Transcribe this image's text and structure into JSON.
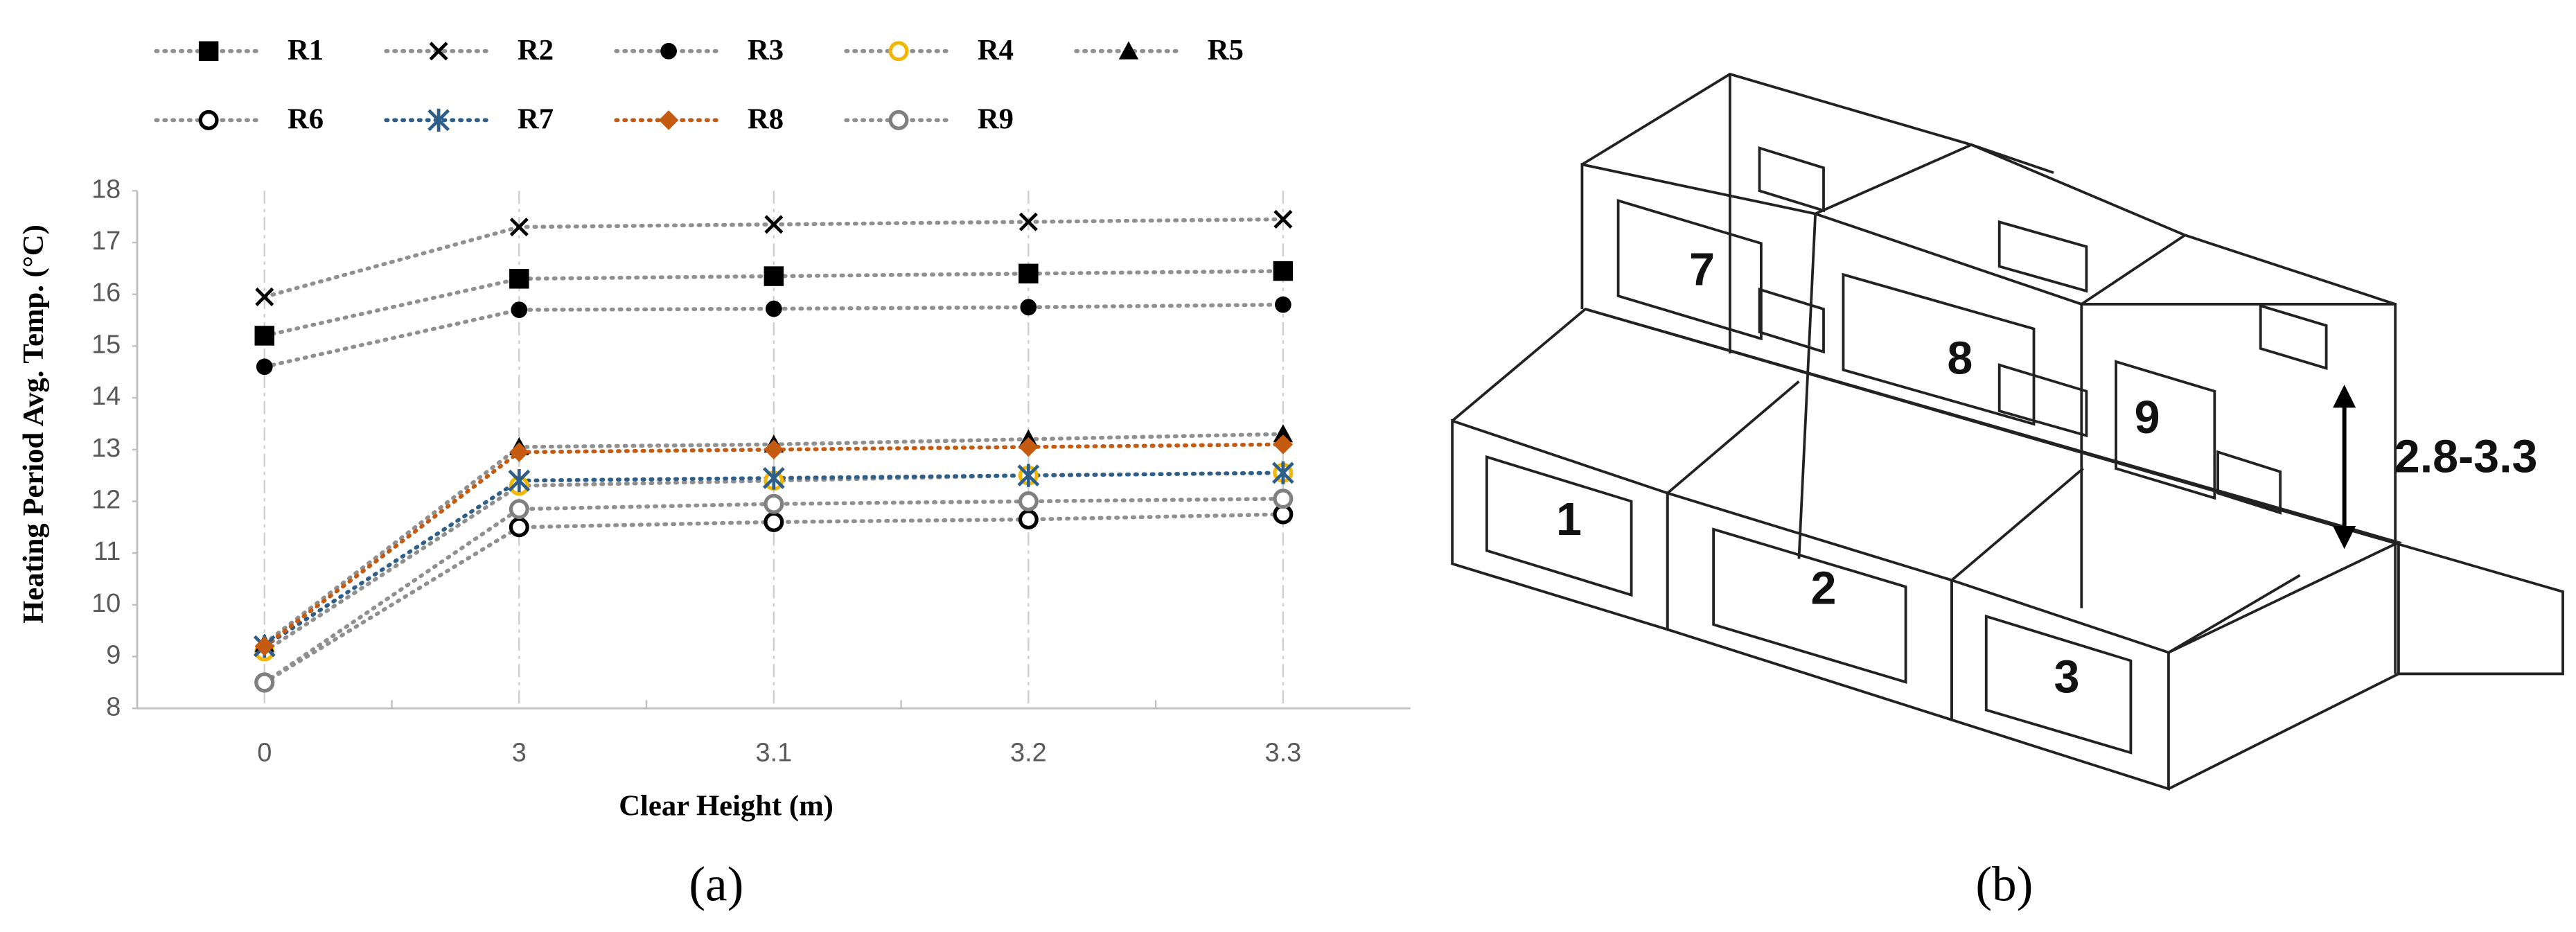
{
  "chart_data": {
    "type": "line",
    "caption": "(a)",
    "x_label": "Clear Height (m)",
    "y_label": "Heating Period Avg. Temp. (°C)",
    "categories": [
      "0",
      "3",
      "3.1",
      "3.2",
      "3.3"
    ],
    "ylim": [
      8,
      18
    ],
    "yticks": [
      8,
      9,
      10,
      11,
      12,
      13,
      14,
      15,
      16,
      17,
      18
    ],
    "grid": "x",
    "series": [
      {
        "name": "R1",
        "color": "#000000",
        "line_color": "#909090",
        "marker": "square",
        "values": [
          15.2,
          16.3,
          16.35,
          16.4,
          16.45
        ]
      },
      {
        "name": "R2",
        "color": "#000000",
        "line_color": "#909090",
        "marker": "x",
        "values": [
          15.95,
          17.3,
          17.35,
          17.4,
          17.45
        ]
      },
      {
        "name": "R3",
        "color": "#000000",
        "line_color": "#909090",
        "marker": "dot",
        "values": [
          14.6,
          15.7,
          15.72,
          15.75,
          15.8
        ]
      },
      {
        "name": "R4",
        "color": "#f2b705",
        "line_color": "#909090",
        "marker": "ring",
        "values": [
          9.1,
          12.3,
          12.4,
          12.5,
          12.55
        ]
      },
      {
        "name": "R5",
        "color": "#000000",
        "line_color": "#909090",
        "marker": "triangle",
        "values": [
          9.25,
          13.05,
          13.1,
          13.2,
          13.3
        ]
      },
      {
        "name": "R6",
        "color": "#000000",
        "line_color": "#909090",
        "marker": "ring",
        "values": [
          8.5,
          11.5,
          11.6,
          11.65,
          11.75
        ]
      },
      {
        "name": "R7",
        "color": "#2e5f8a",
        "line_color": "#2e5f8a",
        "marker": "asterisk",
        "values": [
          9.2,
          12.4,
          12.45,
          12.5,
          12.55
        ]
      },
      {
        "name": "R8",
        "color": "#c55a11",
        "line_color": "#c55a11",
        "marker": "diamond",
        "values": [
          9.2,
          12.95,
          13.0,
          13.05,
          13.1
        ]
      },
      {
        "name": "R9",
        "color": "#808080",
        "line_color": "#909090",
        "marker": "ring",
        "values": [
          8.5,
          11.85,
          11.95,
          12.0,
          12.05
        ]
      }
    ]
  },
  "diagram": {
    "caption": "(b)",
    "room_labels": [
      "1",
      "2",
      "3",
      "7",
      "8",
      "9"
    ],
    "dimension": "2.8-3.3"
  }
}
